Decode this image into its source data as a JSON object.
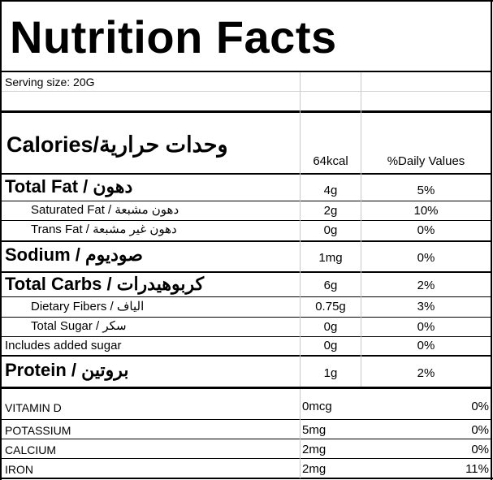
{
  "title": "Nutrition Facts",
  "serving_size": "Serving size:  20G",
  "calories": {
    "label": "Calories/وحدات حرارية",
    "amount": "64kcal",
    "daily_header": "%Daily Values"
  },
  "nutrients": [
    {
      "label": "Total Fat / دهون",
      "amount": "4g",
      "daily": "5%"
    },
    {
      "label": "Saturated Fat / دهون مشبعة",
      "amount": "2g",
      "daily": "10%"
    },
    {
      "label": "Trans Fat / دهون غير مشبعة",
      "amount": "0g",
      "daily": "0%"
    },
    {
      "label": "Sodium / صوديوم",
      "amount": "1mg",
      "daily": "0%"
    },
    {
      "label": "Total Carbs / كربوهيدرات",
      "amount": "6g",
      "daily": "2%"
    },
    {
      "label": "Dietary Fibers / الياف",
      "amount": "0.75g",
      "daily": "3%"
    },
    {
      "label": "Total Sugar / سكر",
      "amount": "0g",
      "daily": "0%"
    },
    {
      "label": "Includes added sugar",
      "amount": "0g",
      "daily": "0%"
    },
    {
      "label": "Protein / بروتين",
      "amount": "1g",
      "daily": "2%"
    }
  ],
  "vitamins": [
    {
      "label": "VITAMIN D",
      "amount": "0mcg",
      "daily": "0%"
    },
    {
      "label": "POTASSIUM",
      "amount": "5mg",
      "daily": "0%"
    },
    {
      "label": "CALCIUM",
      "amount": "2mg",
      "daily": "0%"
    },
    {
      "label": "IRON",
      "amount": "2mg",
      "daily": "11%"
    }
  ]
}
